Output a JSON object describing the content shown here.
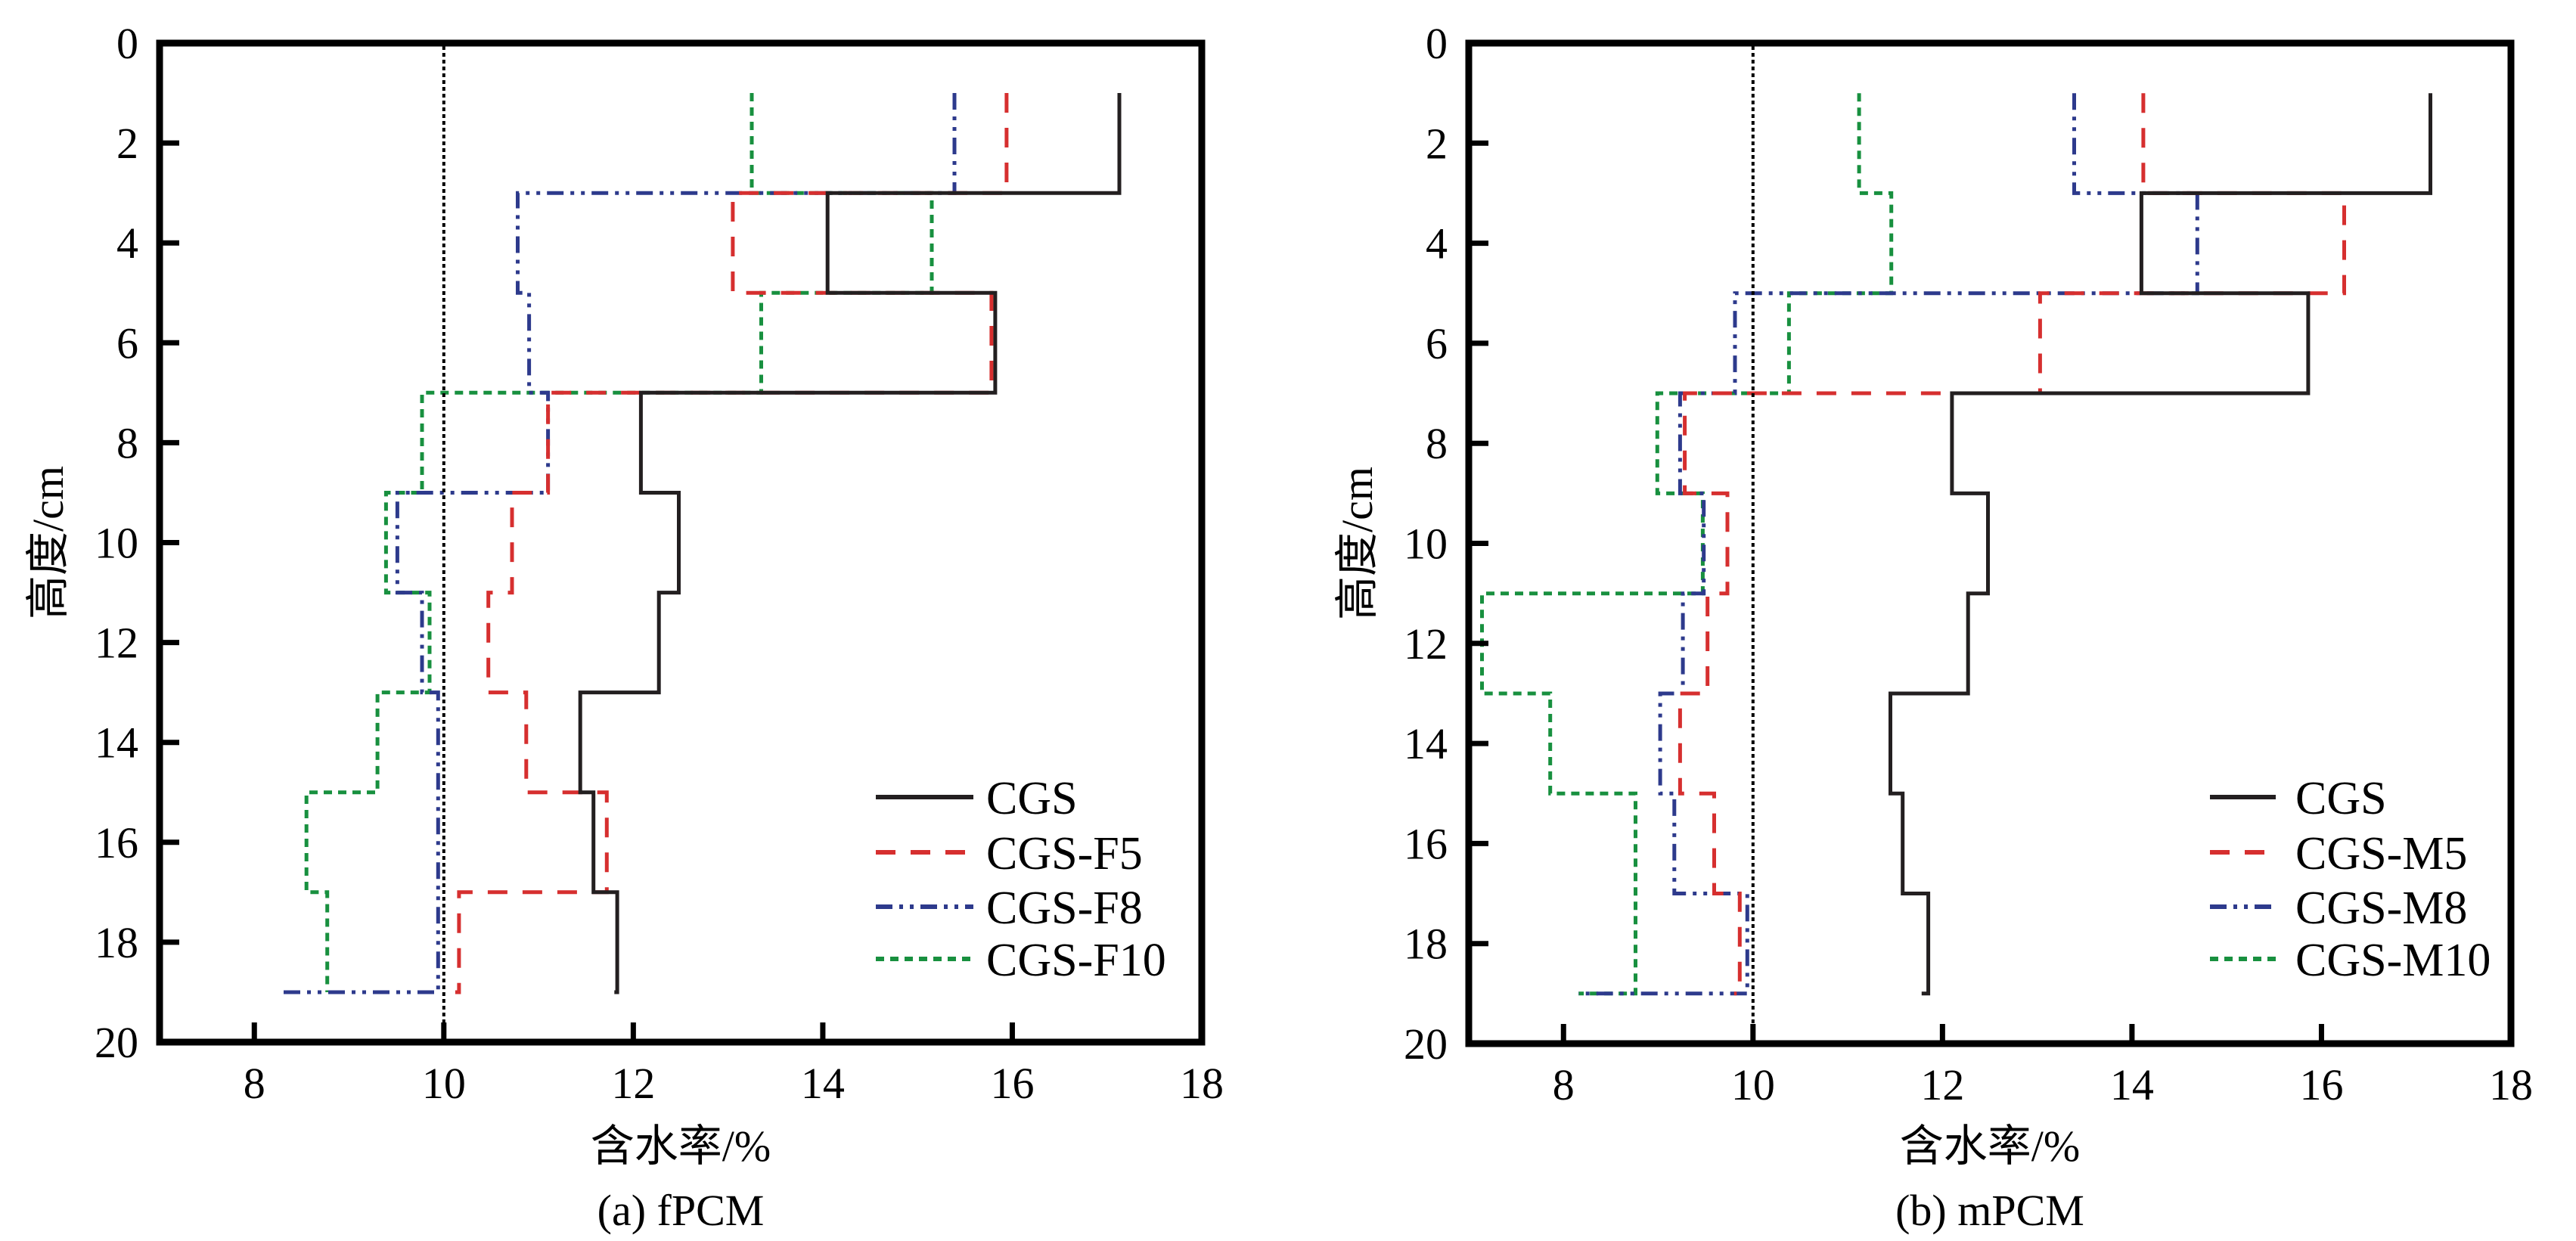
{
  "figure": {
    "colors": {
      "CGS": "#231f20",
      "red": "#d62f2f",
      "blue": "#2d3a8c",
      "green": "#18903f",
      "axis": "#000000",
      "reference": "#000000"
    }
  },
  "chart_data": [
    {
      "type": "line",
      "subtype": "step-profile",
      "title": "(a) fPCM",
      "xlabel": "含水率/%",
      "ylabel": "高度/cm",
      "xlim": [
        7,
        18
      ],
      "ylim": [
        0,
        20
      ],
      "y_inverted": true,
      "x_ticks": [
        8,
        10,
        12,
        14,
        16,
        18
      ],
      "y_ticks": [
        0,
        2,
        4,
        6,
        8,
        10,
        12,
        14,
        16,
        18,
        20
      ],
      "grid": false,
      "legend_position": "bottom-right",
      "reference_line": {
        "x": 10,
        "style": "dotted"
      },
      "layer_boundaries_cm": [
        1,
        3,
        5,
        7,
        9,
        11,
        13,
        15,
        17,
        19
      ],
      "series": [
        {
          "name": "CGS",
          "style": "solid",
          "color": "#231f20",
          "values": [
            17.13,
            14.05,
            15.82,
            12.08,
            12.48,
            12.27,
            11.44,
            11.58,
            11.83
          ],
          "end": 11.8
        },
        {
          "name": "CGS-F5",
          "style": "dash",
          "color": "#d62f2f",
          "values": [
            15.94,
            13.05,
            15.78,
            11.1,
            10.72,
            10.47,
            10.87,
            11.72,
            10.16
          ],
          "end": 10.12
        },
        {
          "name": "CGS-F8",
          "style": "dash-dot-dot",
          "color": "#2d3a8c",
          "values": [
            15.39,
            10.78,
            10.9,
            11.1,
            9.51,
            9.77,
            9.94,
            9.94,
            9.94
          ],
          "end": 8.27
        },
        {
          "name": "CGS-F10",
          "style": "short-dash",
          "color": "#18903f",
          "values": [
            13.25,
            15.15,
            13.35,
            9.77,
            9.39,
            9.85,
            9.3,
            8.55,
            8.77
          ],
          "end": 8.77
        }
      ]
    },
    {
      "type": "line",
      "subtype": "step-profile",
      "title": "(b) mPCM",
      "xlabel": "含水率/%",
      "ylabel": "高度/cm",
      "xlim": [
        7,
        18
      ],
      "ylim": [
        0,
        20
      ],
      "y_inverted": true,
      "x_ticks": [
        8,
        10,
        12,
        14,
        16,
        18
      ],
      "y_ticks": [
        0,
        2,
        4,
        6,
        8,
        10,
        12,
        14,
        16,
        18,
        20
      ],
      "grid": false,
      "legend_position": "bottom-right",
      "reference_line": {
        "x": 10,
        "style": "dotted"
      },
      "layer_boundaries_cm": [
        1,
        3,
        5,
        7,
        9,
        11,
        13,
        15,
        17,
        19
      ],
      "series": [
        {
          "name": "CGS",
          "style": "solid",
          "color": "#231f20",
          "values": [
            17.15,
            14.1,
            15.86,
            12.1,
            12.48,
            12.27,
            11.45,
            11.58,
            11.85
          ],
          "end": 11.78
        },
        {
          "name": "CGS-M5",
          "style": "dash",
          "color": "#d62f2f",
          "values": [
            14.12,
            16.24,
            13.03,
            9.28,
            9.73,
            9.52,
            9.23,
            9.59,
            9.86
          ],
          "end": 9.8
        },
        {
          "name": "CGS-M8",
          "style": "dash-dot-dot",
          "color": "#2d3a8c",
          "values": [
            13.39,
            14.69,
            9.81,
            9.23,
            9.48,
            9.26,
            9.02,
            9.17,
            9.94
          ],
          "end": 8.16
        },
        {
          "name": "CGS-M10",
          "style": "short-dash",
          "color": "#18903f",
          "values": [
            11.12,
            11.46,
            10.38,
            8.99,
            9.47,
            7.14,
            7.86,
            8.76,
            8.76
          ],
          "end": 8.16
        }
      ]
    }
  ]
}
